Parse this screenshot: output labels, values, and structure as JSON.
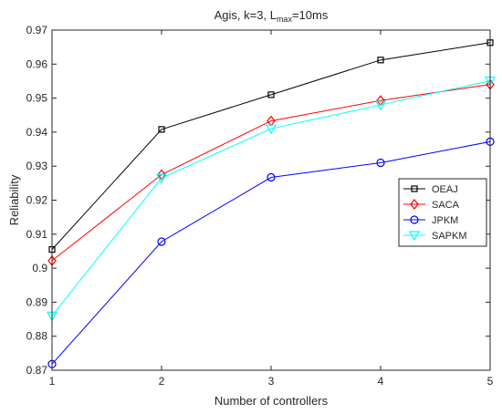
{
  "chart_data": {
    "type": "line",
    "title": "Agis, k=3, L",
    "title_sub": "max",
    "title_tail": "=10ms",
    "xlabel": "Number of controllers",
    "ylabel": "Reliability",
    "x": [
      1,
      2,
      3,
      4,
      5
    ],
    "xlim": [
      1,
      5
    ],
    "ylim": [
      0.87,
      0.97
    ],
    "xticks": [
      "1",
      "2",
      "3",
      "4",
      "5"
    ],
    "yticks": [
      "0.87",
      "0.88",
      "0.89",
      "0.9",
      "0.91",
      "0.92",
      "0.93",
      "0.94",
      "0.95",
      "0.96",
      "0.97"
    ],
    "grid": false,
    "legend_position": "right",
    "series": [
      {
        "name": "OEAJ",
        "values": [
          0.9055,
          0.9408,
          0.951,
          0.9612,
          0.9663
        ],
        "color": "#000000",
        "marker": "square"
      },
      {
        "name": "SACA",
        "values": [
          0.9022,
          0.9275,
          0.9433,
          0.9493,
          0.954
        ],
        "color": "#ff0000",
        "marker": "diamond"
      },
      {
        "name": "JPKM",
        "values": [
          0.8718,
          0.9078,
          0.9267,
          0.931,
          0.9372
        ],
        "color": "#0000ff",
        "marker": "circle"
      },
      {
        "name": "SAPKM",
        "values": [
          0.886,
          0.9265,
          0.941,
          0.948,
          0.9551
        ],
        "color": "#00ffff",
        "marker": "triangle-down"
      }
    ]
  }
}
